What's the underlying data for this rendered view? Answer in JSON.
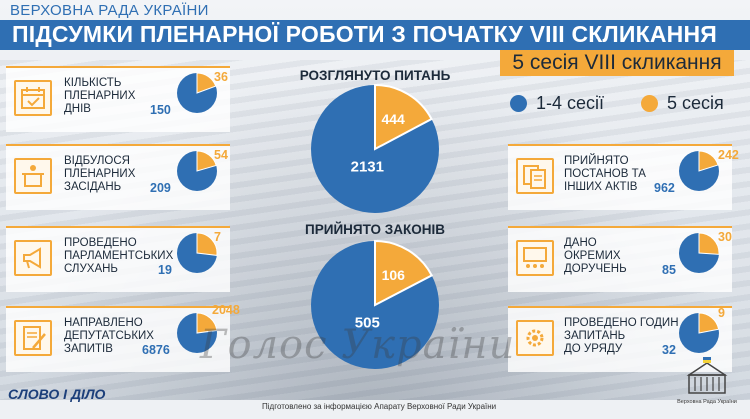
{
  "header": {
    "source": "ВЕРХОВНА РАДА УКРАЇНИ",
    "title": "ПІДСУМКИ ПЛЕНАРНОЇ РОБОТИ З ПОЧАТКУ VIII СКЛИКАННЯ",
    "session": "5 сесія VIII скликання"
  },
  "colors": {
    "blue": "#2f6fb3",
    "orange": "#f4a93a"
  },
  "legend": [
    {
      "label": "1-4 сесії",
      "color": "#2f6fb3"
    },
    {
      "label": "5 сесія",
      "color": "#f4a93a"
    }
  ],
  "chart_data": [
    {
      "type": "pie",
      "title": "РОЗГЛЯНУТО ПИТАНЬ",
      "categories": [
        "1-4 сесії",
        "5 сесія"
      ],
      "values": [
        2131,
        444
      ]
    },
    {
      "type": "pie",
      "title": "ПРИЙНЯТО ЗАКОНІВ",
      "categories": [
        "1-4 сесії",
        "5 сесія"
      ],
      "values": [
        505,
        106
      ]
    },
    {
      "type": "pie",
      "title": "КІЛЬКІСТЬ ПЛЕНАРНИХ ДНІВ",
      "categories": [
        "1-4 сесії",
        "5 сесія"
      ],
      "values": [
        150,
        36
      ],
      "icon": "calendar-icon"
    },
    {
      "type": "pie",
      "title": "ВІДБУЛОСЯ ПЛЕНАРНИХ ЗАСІДАНЬ",
      "categories": [
        "1-4 сесії",
        "5 сесія"
      ],
      "values": [
        209,
        54
      ],
      "icon": "podium-icon"
    },
    {
      "type": "pie",
      "title": "ПРОВЕДЕНО ПАРЛАМЕНТСЬКИХ СЛУХАНЬ",
      "categories": [
        "1-4 сесії",
        "5 сесія"
      ],
      "values": [
        19,
        7
      ],
      "icon": "megaphone-icon"
    },
    {
      "type": "pie",
      "title": "НАПРАВЛЕНО ДЕПУТАТСЬКИХ ЗАПИТІВ",
      "categories": [
        "1-4 сесії",
        "5 сесія"
      ],
      "values": [
        6876,
        2048
      ],
      "icon": "document-pen-icon"
    },
    {
      "type": "pie",
      "title": "ПРИЙНЯТО ПОСТАНОВ ТА ІНШИХ АКТІВ",
      "categories": [
        "1-4 сесії",
        "5 сесія"
      ],
      "values": [
        962,
        242
      ],
      "icon": "documents-icon"
    },
    {
      "type": "pie",
      "title": "ДАНО ОКРЕМИХ ДОРУЧЕНЬ",
      "categories": [
        "1-4 сесії",
        "5 сесія"
      ],
      "values": [
        85,
        30
      ],
      "icon": "presentation-icon"
    },
    {
      "type": "pie",
      "title": "ПРОВЕДЕНО ГОДИН ЗАПИТАНЬ ДО УРЯДУ",
      "categories": [
        "1-4 сесії",
        "5 сесія"
      ],
      "values": [
        32,
        9
      ],
      "icon": "gear-icon"
    }
  ],
  "footer": {
    "note": "Підготовлено за інформацією Апарату Верховної Ради України",
    "logo_left": "СЛОВО І ДІЛО",
    "logo_right": "Верховна Рада України",
    "watermark": "Голос України"
  }
}
